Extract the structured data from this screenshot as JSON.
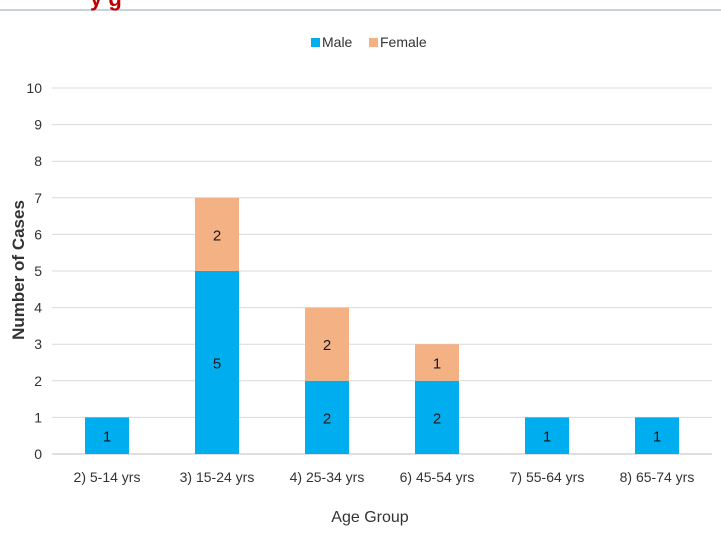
{
  "header": {
    "title_fragment": "y g"
  },
  "chart_data": {
    "type": "bar",
    "stacked": true,
    "categories": [
      "2) 5-14 yrs",
      "3) 15-24 yrs",
      "4) 25-34 yrs",
      "6) 45-54 yrs",
      "7) 55-64 yrs",
      "8) 65-74 yrs"
    ],
    "series": [
      {
        "name": "Male",
        "values": [
          1,
          5,
          2,
          2,
          1,
          1
        ],
        "color": "#00aeef"
      },
      {
        "name": "Female",
        "values": [
          0,
          2,
          2,
          1,
          0,
          0
        ],
        "color": "#f4b183"
      }
    ],
    "xlabel": "Age Group",
    "ylabel": "Number of Cases",
    "ylim": [
      0,
      10
    ],
    "yticks": [
      0,
      1,
      2,
      3,
      4,
      5,
      6,
      7,
      8,
      9,
      10
    ],
    "grid": true,
    "legend_position": "top-center",
    "data_labels": true
  }
}
